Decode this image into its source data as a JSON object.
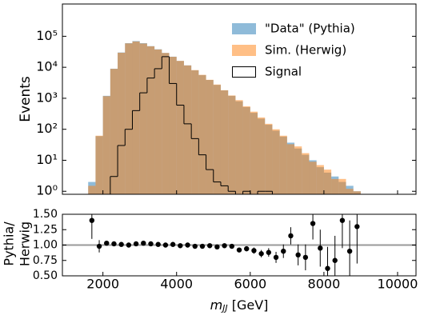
{
  "chart_data": [
    {
      "type": "histogram",
      "bins": [
        1600,
        1800,
        2000,
        2200,
        2400,
        2600,
        2800,
        3000,
        3200,
        3400,
        3600,
        3800,
        4000,
        4200,
        4400,
        4600,
        4800,
        5000,
        5200,
        5400,
        5600,
        5800,
        6000,
        6200,
        6400,
        6600,
        6800,
        7000,
        7200,
        7400,
        7600,
        7800,
        8000,
        8200,
        8400,
        8600,
        8800,
        9000
      ],
      "series": [
        {
          "name": "\"Data\" (Pythia)",
          "color": "#1f77b4",
          "style": "filled",
          "values": [
            2,
            60,
            1200,
            9000,
            30000,
            60000,
            70000,
            60000,
            48000,
            38000,
            29000,
            22000,
            16000,
            11500,
            8000,
            5600,
            3900,
            2700,
            1800,
            1200,
            800,
            520,
            340,
            220,
            140,
            90,
            58,
            37,
            24,
            15,
            10,
            6,
            4,
            3,
            2,
            1.5,
            1
          ]
        },
        {
          "name": "Sim. (Herwig)",
          "color": "#ff7f0e",
          "style": "filled",
          "values": [
            1.5,
            62,
            1170,
            8900,
            29500,
            59000,
            68000,
            58500,
            47500,
            37500,
            29000,
            21800,
            16100,
            11500,
            8100,
            5700,
            3950,
            2780,
            1820,
            1230,
            870,
            550,
            370,
            240,
            150,
            100,
            62,
            33,
            28,
            17,
            9,
            7,
            5,
            2.5,
            2.5,
            1.2,
            1
          ]
        },
        {
          "name": "Signal",
          "color": "#000000",
          "style": "step",
          "values": [
            null,
            null,
            null,
            3,
            30,
            100,
            400,
            1500,
            4500,
            9000,
            22000,
            3000,
            600,
            150,
            50,
            15,
            5,
            2,
            1.5,
            1,
            null,
            1,
            null,
            1,
            1,
            null,
            null,
            null,
            null,
            null,
            null,
            null,
            null,
            null,
            null,
            null,
            null
          ]
        }
      ],
      "xlim": [
        900,
        10500
      ],
      "ylabel": "Events",
      "log_y": true,
      "ylim": [
        0.8,
        1100000
      ],
      "yticks": [
        {
          "value": 1,
          "label": "10⁰"
        },
        {
          "value": 10,
          "label": "10¹"
        },
        {
          "value": 100,
          "label": "10²"
        },
        {
          "value": 1000,
          "label": "10³"
        },
        {
          "value": 10000,
          "label": "10⁴"
        },
        {
          "value": 100000,
          "label": "10⁵"
        }
      ],
      "alpha": 0.5,
      "legend": "upper right"
    },
    {
      "type": "errorbar",
      "x": [
        1700,
        1900,
        2100,
        2300,
        2500,
        2700,
        2900,
        3100,
        3300,
        3500,
        3700,
        3900,
        4100,
        4300,
        4500,
        4700,
        4900,
        5100,
        5300,
        5500,
        5700,
        5900,
        6100,
        6300,
        6500,
        6700,
        6900,
        7100,
        7300,
        7500,
        7700,
        7900,
        8100,
        8300,
        8500,
        8700,
        8900
      ],
      "values": [
        1.4,
        0.98,
        1.03,
        1.02,
        1.01,
        1.0,
        1.02,
        1.03,
        1.02,
        1.01,
        1.0,
        1.01,
        0.99,
        1.0,
        0.98,
        0.98,
        0.99,
        0.97,
        0.99,
        0.98,
        0.92,
        0.94,
        0.91,
        0.86,
        0.88,
        0.8,
        0.9,
        1.15,
        0.84,
        0.8,
        1.35,
        0.95,
        0.62,
        0.75,
        1.4,
        0.9,
        1.3
      ],
      "errors": [
        0.3,
        0.1,
        0.02,
        0.01,
        0.01,
        0.01,
        0.01,
        0.01,
        0.01,
        0.01,
        0.01,
        0.01,
        0.01,
        0.01,
        0.01,
        0.01,
        0.015,
        0.02,
        0.02,
        0.025,
        0.03,
        0.04,
        0.05,
        0.06,
        0.07,
        0.09,
        0.11,
        0.14,
        0.17,
        0.21,
        0.26,
        0.3,
        0.35,
        0.4,
        0.45,
        0.5,
        0.6
      ],
      "color": "#000000",
      "reference_line": 1,
      "xlim": [
        900,
        10500
      ],
      "xticks": [
        2000,
        4000,
        6000,
        8000,
        10000
      ],
      "xlabel": [
        "m",
        "JJ",
        " [GeV]"
      ],
      "ylabel": [
        "Pythia/",
        "Herwig"
      ],
      "ylim": [
        0.5,
        1.5
      ],
      "yticks": [
        {
          "value": 0.5,
          "label": "0.50"
        },
        {
          "value": 0.75,
          "label": "0.75"
        },
        {
          "value": 1.0,
          "label": "1.00"
        },
        {
          "value": 1.25,
          "label": "1.25"
        },
        {
          "value": 1.5,
          "label": "1.50"
        }
      ]
    }
  ]
}
